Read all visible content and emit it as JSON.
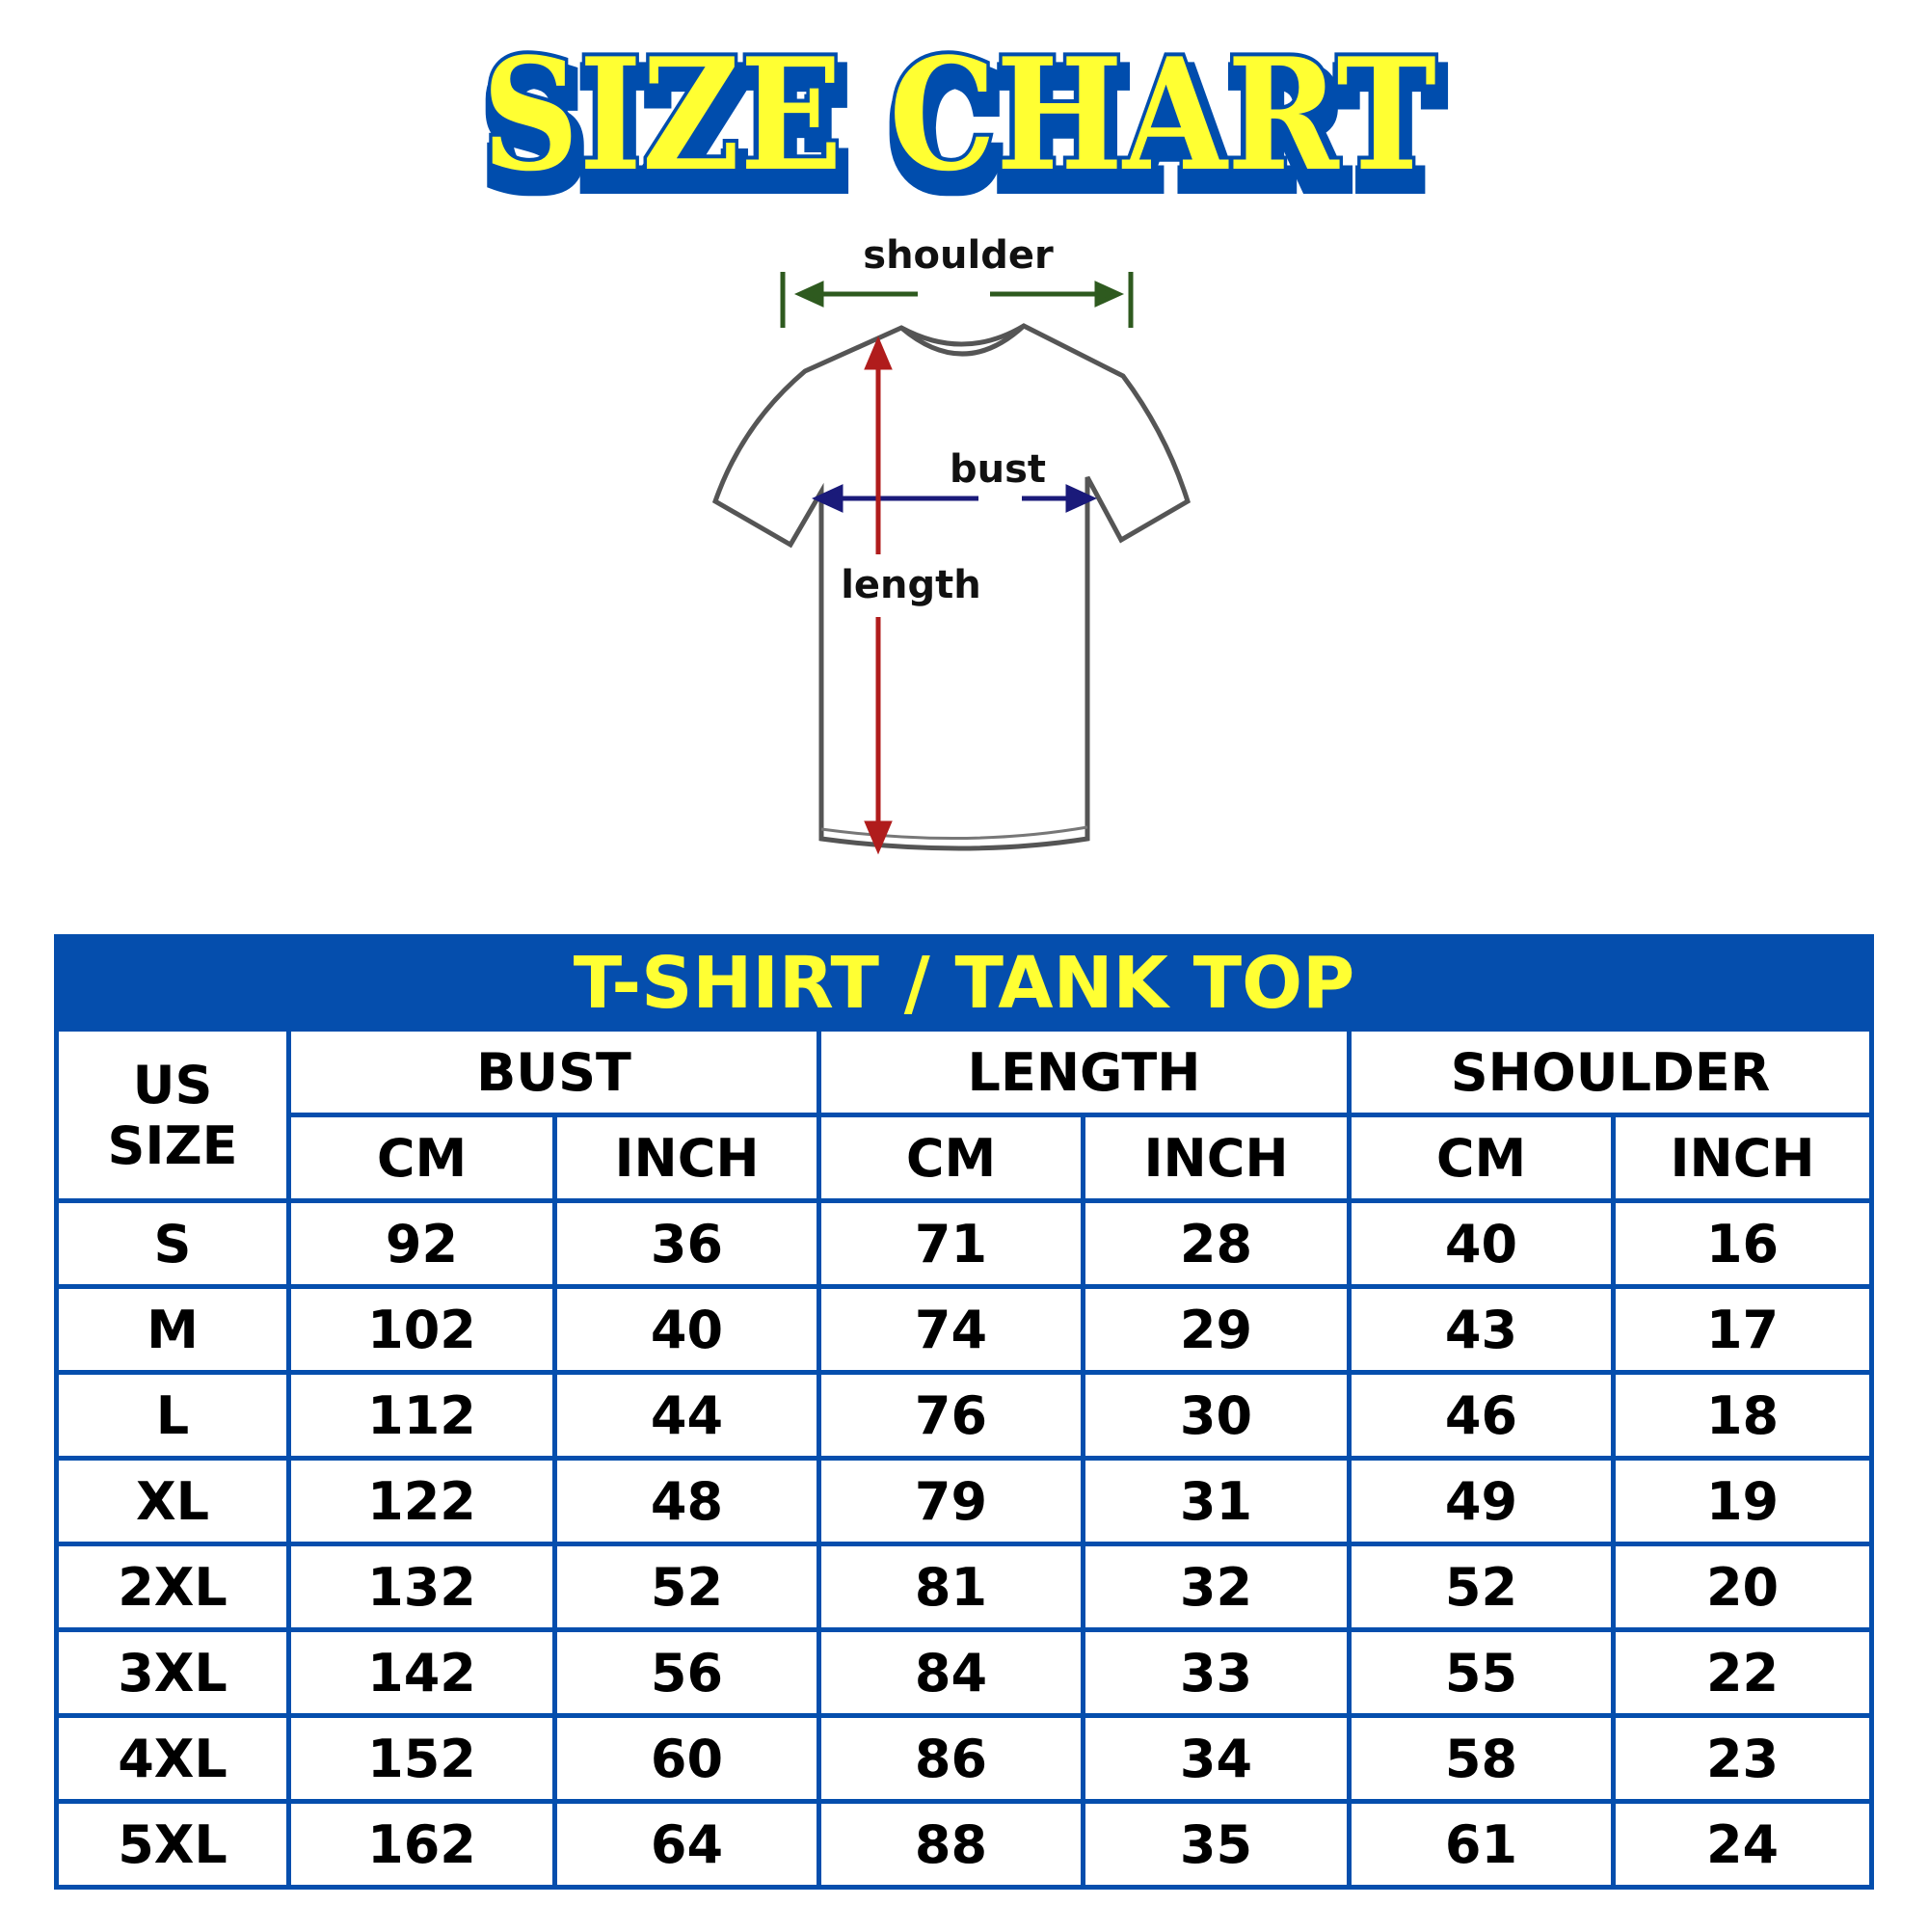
{
  "title": "SIZE CHART",
  "diagram": {
    "shoulder_label": "shoulder",
    "bust_label": "bust",
    "length_label": "length"
  },
  "colors": {
    "brand_blue": "#054ead",
    "title_yellow": "#ffff33",
    "shoulder_arrow": "#2e5a1f",
    "bust_arrow": "#1a1a7a",
    "length_arrow": "#b01c1c"
  },
  "table": {
    "title": "T-SHIRT / TANK TOP",
    "size_header": "US SIZE",
    "groups": [
      "BUST",
      "LENGTH",
      "SHOULDER"
    ],
    "units": [
      "CM",
      "INCH",
      "CM",
      "INCH",
      "CM",
      "INCH"
    ],
    "rows": [
      [
        "S",
        "92",
        "36",
        "71",
        "28",
        "40",
        "16"
      ],
      [
        "M",
        "102",
        "40",
        "74",
        "29",
        "43",
        "17"
      ],
      [
        "L",
        "112",
        "44",
        "76",
        "30",
        "46",
        "18"
      ],
      [
        "XL",
        "122",
        "48",
        "79",
        "31",
        "49",
        "19"
      ],
      [
        "2XL",
        "132",
        "52",
        "81",
        "32",
        "52",
        "20"
      ],
      [
        "3XL",
        "142",
        "56",
        "84",
        "33",
        "55",
        "22"
      ],
      [
        "4XL",
        "152",
        "60",
        "86",
        "34",
        "58",
        "23"
      ],
      [
        "5XL",
        "162",
        "64",
        "88",
        "35",
        "61",
        "24"
      ]
    ]
  }
}
